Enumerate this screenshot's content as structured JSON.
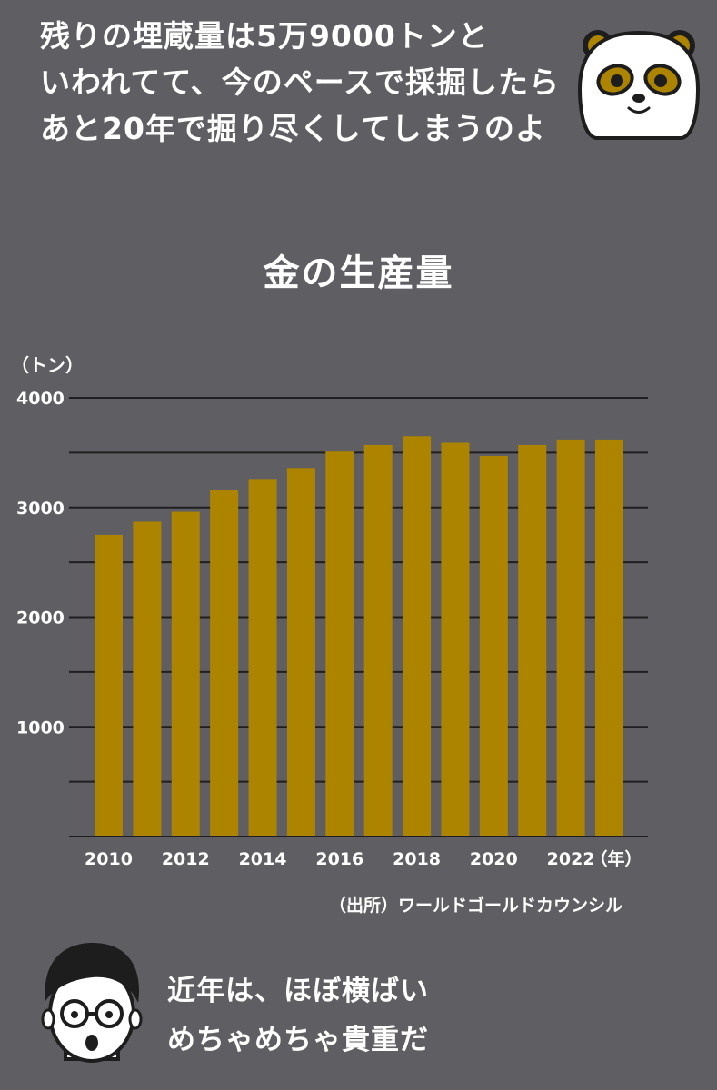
{
  "top_speech": {
    "lines": [
      "残りの埋蔵量は5万9000トンと",
      "いわれてて、今のペースで採掘したら",
      "あと20年で掘り尽くしてしまうのよ"
    ]
  },
  "bottom_speech": {
    "lines": [
      "近年は、ほぼ横ばい",
      "めちゃめちゃ貴重だ"
    ]
  },
  "source_note": "（出所）ワールドゴールドカウンシル",
  "colors": {
    "background": "#5f5f63",
    "bar": "#ad8400",
    "grid": "#1f1f22",
    "text": "#ffffff"
  },
  "chart_data": {
    "type": "bar",
    "title": "金の生産量",
    "ylabel": "（トン）",
    "xlabel": "（年）",
    "categories": [
      "2010",
      "2011",
      "2012",
      "2013",
      "2014",
      "2015",
      "2016",
      "2017",
      "2018",
      "2019",
      "2020",
      "2021",
      "2022",
      "2023"
    ],
    "x_tick_labels": [
      "2010",
      "",
      "2012",
      "",
      "2014",
      "",
      "2016",
      "",
      "2018",
      "",
      "2020",
      "",
      "2022",
      ""
    ],
    "values": [
      2750,
      2870,
      2960,
      3160,
      3260,
      3360,
      3510,
      3570,
      3650,
      3590,
      3470,
      3570,
      3620,
      3620
    ],
    "ylim": [
      0,
      4000
    ],
    "y_ticks": [
      1000,
      2000,
      3000,
      4000
    ],
    "gridlines_every": 500,
    "grid": true,
    "legend": "none"
  }
}
